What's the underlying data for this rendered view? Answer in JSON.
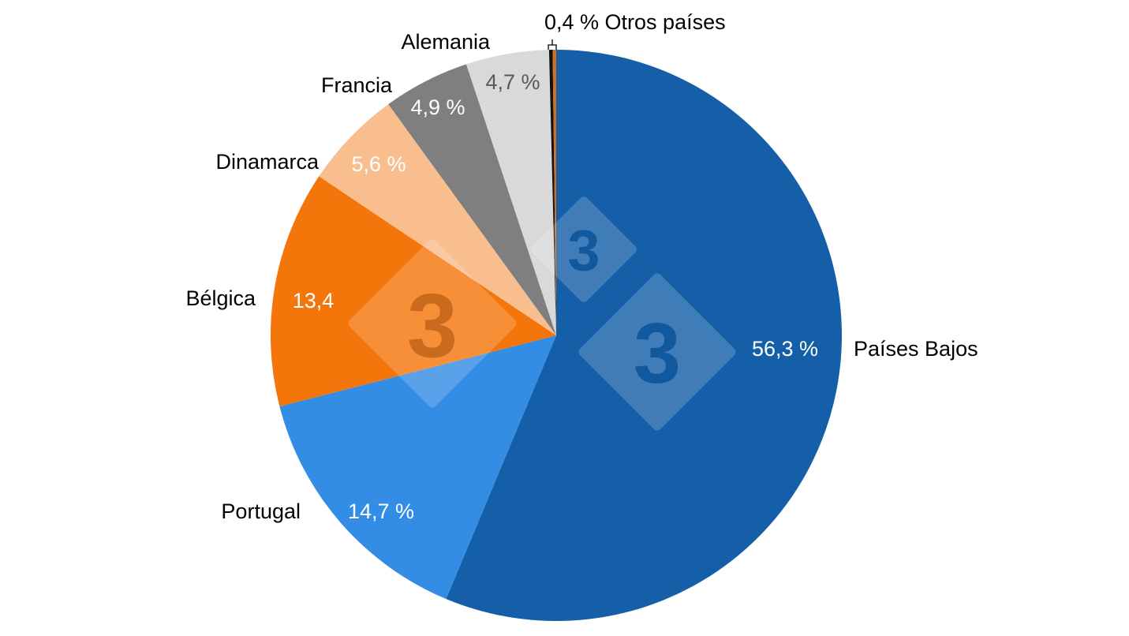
{
  "chart_data": {
    "type": "pie",
    "title": "",
    "start": "top",
    "direction": "clockwise",
    "slices": [
      {
        "name": "Países Bajos",
        "value": 56.3,
        "label": "56,3 %",
        "color": "#155FA9",
        "label_color": "#FFFFFF"
      },
      {
        "name": "Portugal",
        "value": 14.7,
        "label": "14,7 %",
        "color": "#348DE4",
        "label_color": "#FFFFFF"
      },
      {
        "name": "Bélgica",
        "value": 13.4,
        "label": "13,4",
        "color": "#F4760B",
        "label_color": "#FFFFFF"
      },
      {
        "name": "Dinamarca",
        "value": 5.6,
        "label": "5,6 %",
        "color": "#F9BE8E",
        "label_color": "#FFFFFF"
      },
      {
        "name": "Francia",
        "value": 4.9,
        "label": "4,9 %",
        "color": "#7F7F7F",
        "label_color": "#FFFFFF"
      },
      {
        "name": "Alemania",
        "value": 4.7,
        "label": "4,7 %",
        "color": "#D9D9D9",
        "label_color": "#595959"
      },
      {
        "name": "Otros países",
        "value": 0.2,
        "label": "",
        "color": "#111111"
      },
      {
        "name": "",
        "value": 0.2,
        "label": "",
        "color": "#D0701E"
      }
    ],
    "group_annotation": "0,4 % Otros países",
    "watermark": "3"
  }
}
